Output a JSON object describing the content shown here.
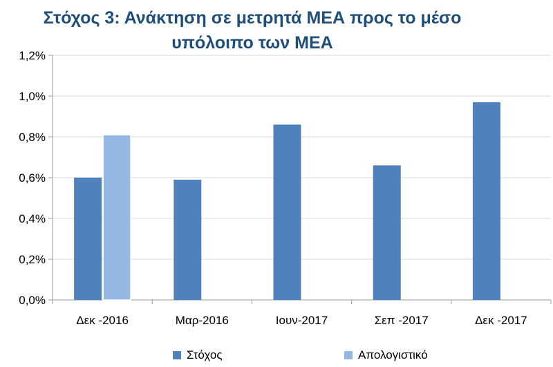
{
  "chart_data": {
    "type": "bar",
    "title_line1": "Στόχος 3: Ανάκτηση σε μετρητά ΜΕΑ προς το μέσο",
    "title_line2": "υπόλοιπο των ΜΕΑ",
    "categories": [
      "Δεκ -2016",
      "Μαρ-2016",
      "Ιουν-2017",
      "Σεπ -2017",
      "Δεκ -2017"
    ],
    "series": [
      {
        "name": "Στόχος",
        "color": "#4f81bd",
        "values": [
          0.6,
          0.59,
          0.86,
          0.66,
          0.97
        ]
      },
      {
        "name": "Απολογιστικό",
        "color": "#95b8e3",
        "values": [
          0.81,
          null,
          null,
          null,
          null
        ]
      }
    ],
    "y_ticks": [
      "0,0%",
      "0,2%",
      "0,4%",
      "0,6%",
      "0,8%",
      "1,0%",
      "1,2%"
    ],
    "ylim": [
      0,
      1.2
    ],
    "grid": true,
    "legend_position": "bottom"
  }
}
